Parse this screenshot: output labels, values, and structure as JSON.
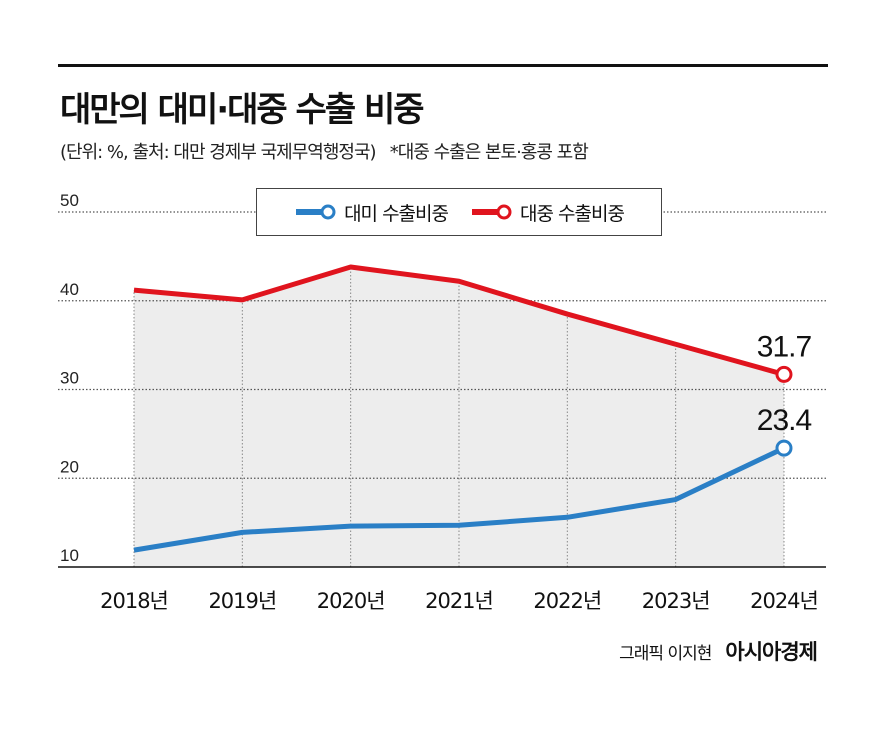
{
  "title": "대만의 대미·대중 수출 비중",
  "subtitle": "(단위: %, 출처: 대만 경제부 국제무역행정국)",
  "note": "*대중 수출은 본토·홍콩 포함",
  "credit": {
    "byline": "그래픽 이지현",
    "logo": "아시아경제"
  },
  "colors": {
    "us": "#2a7fc6",
    "china": "#e0141e",
    "area": "#ededed"
  },
  "chart_data": {
    "type": "line",
    "categories": [
      "2018년",
      "2019년",
      "2020년",
      "2021년",
      "2022년",
      "2023년",
      "2024년"
    ],
    "ylim": [
      10,
      50
    ],
    "yticks": [
      10,
      20,
      30,
      40,
      50
    ],
    "grid": true,
    "legend": "top-center",
    "series": [
      {
        "name": "대미 수출비중",
        "values": [
          11.9,
          13.9,
          14.6,
          14.7,
          15.6,
          17.6,
          23.4
        ],
        "end_label": "23.4"
      },
      {
        "name": "대중 수출비중",
        "values": [
          41.2,
          40.1,
          43.8,
          42.2,
          38.5,
          35.1,
          31.7
        ],
        "end_label": "31.7"
      }
    ]
  }
}
